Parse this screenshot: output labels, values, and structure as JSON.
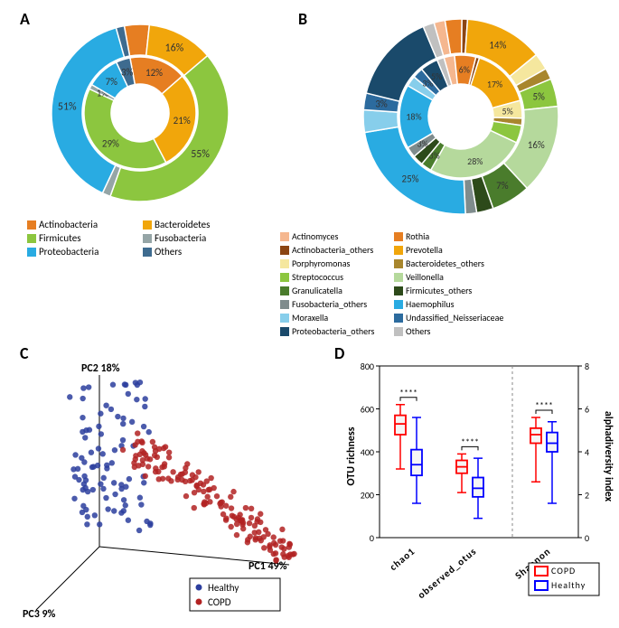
{
  "labels": {
    "A": "A",
    "B": "B",
    "C": "C",
    "D": "D"
  },
  "panelA": {
    "outer": [
      {
        "name": "Actinobacteria",
        "pct": null,
        "color": "#e67e22"
      },
      {
        "name": "Bacteroidetes",
        "pct": 16,
        "color": "#f1a60b"
      },
      {
        "name": "Firmicutes",
        "pct": 55,
        "color": "#8cc63f"
      },
      {
        "name": "Fusobacteria",
        "pct": null,
        "color": "#95a5a6"
      },
      {
        "name": "Proteobacteria",
        "pct": 51,
        "color": "#29abe2"
      },
      {
        "name": "Others",
        "pct": null,
        "color": "#3e6b8f"
      }
    ],
    "outer_values": [
      6,
      16,
      55,
      2,
      51,
      2
    ],
    "inner": [
      {
        "name": "Actinobacteria",
        "pct": 12,
        "color": "#e67e22"
      },
      {
        "name": "Bacteroidetes",
        "pct": 21,
        "color": "#f1a60b"
      },
      {
        "name": "Firmicutes",
        "pct": 29,
        "color": "#8cc63f"
      },
      {
        "name": "Fusobacteria",
        "pct": 1,
        "color": "#95a5a6"
      },
      {
        "name": "Proteobacteria",
        "pct": 7,
        "color": "#29abe2"
      },
      {
        "name": "Others",
        "pct": 3,
        "color": "#3e6b8f"
      }
    ],
    "inner_values": [
      12,
      21,
      29,
      1,
      7,
      3
    ],
    "shown_labels_outer": [
      "",
      "16%",
      "55%",
      "",
      "51%",
      ""
    ],
    "shown_labels_inner": [
      "12%",
      "21%",
      "29%",
      "1%",
      "7%",
      "3%"
    ],
    "legend": [
      {
        "label": "Actinobacteria",
        "color": "#e67e22"
      },
      {
        "label": "Bacteroidetes",
        "color": "#f1a60b"
      },
      {
        "label": "Firmicutes",
        "color": "#8cc63f"
      },
      {
        "label": "Fusobacteria",
        "color": "#95a5a6"
      },
      {
        "label": "Proteobacteria",
        "color": "#29abe2"
      },
      {
        "label": "Others",
        "color": "#3e6b8f"
      }
    ]
  },
  "panelB": {
    "outer": [
      {
        "name": "Actinomyces",
        "color": "#f5b78f"
      },
      {
        "name": "Rothia",
        "color": "#e67e22"
      },
      {
        "name": "Actinobacteria_others",
        "color": "#8b4513"
      },
      {
        "name": "Prevotella",
        "pct": 14,
        "color": "#f1a60b"
      },
      {
        "name": "Porphyromonas",
        "color": "#f5e79e"
      },
      {
        "name": "Bacteroidetes_others",
        "color": "#a8862d"
      },
      {
        "name": "Streptococcus",
        "pct": 5,
        "color": "#8cc63f"
      },
      {
        "name": "Veillonella",
        "pct": 16,
        "color": "#b5d99c"
      },
      {
        "name": "Granulicatella",
        "pct": 7,
        "color": "#4a7c2c"
      },
      {
        "name": "Firmicutes_others",
        "color": "#2d4a1a"
      },
      {
        "name": "Fusobacteria_others",
        "color": "#7f8c8d"
      },
      {
        "name": "Haemophilus",
        "pct": 25,
        "color": "#29abe2"
      },
      {
        "name": "Moraxella",
        "color": "#87ceeb"
      },
      {
        "name": "Undassified_Neisseriaceae",
        "pct": 3,
        "color": "#2c6b9e"
      },
      {
        "name": "Proteobacteria_others",
        "color": "#1a4a6b"
      },
      {
        "name": "Others",
        "color": "#c0c0c0"
      }
    ],
    "outer_values": [
      2,
      3,
      1,
      14,
      3,
      2,
      5,
      16,
      7,
      3,
      2,
      25,
      4,
      3,
      16,
      2
    ],
    "inner_values": [
      3,
      6,
      1,
      17,
      5,
      2,
      5,
      28,
      3,
      3,
      3,
      18,
      3,
      3,
      5,
      2
    ],
    "shown_labels_outer": [
      "",
      "",
      "",
      "14%",
      "",
      "",
      "5%",
      "16%",
      "7%",
      "",
      "",
      "25%",
      "",
      "3%",
      "",
      ""
    ],
    "shown_labels_inner": [
      "",
      "6%",
      "",
      "17%",
      "5%",
      "",
      "",
      "28%",
      "3%",
      "",
      "3%",
      "18%",
      "",
      "3%",
      "5%",
      ""
    ],
    "legend": [
      {
        "label": "Actinomyces",
        "color": "#f5b78f"
      },
      {
        "label": "Rothia",
        "color": "#e67e22"
      },
      {
        "label": "Actinobacteria_others",
        "color": "#8b4513"
      },
      {
        "label": "Prevotella",
        "color": "#f1a60b"
      },
      {
        "label": "Porphyromonas",
        "color": "#f5e79e"
      },
      {
        "label": "Bacteroidetes_others",
        "color": "#a8862d"
      },
      {
        "label": "Streptococcus",
        "color": "#8cc63f"
      },
      {
        "label": "Veillonella",
        "color": "#b5d99c"
      },
      {
        "label": "Granulicatella",
        "color": "#4a7c2c"
      },
      {
        "label": "Firmicutes_others",
        "color": "#2d4a1a"
      },
      {
        "label": "Fusobacteria_others",
        "color": "#7f8c8d"
      },
      {
        "label": "Haemophilus",
        "color": "#29abe2"
      },
      {
        "label": "Moraxella",
        "color": "#87ceeb"
      },
      {
        "label": "Undassified_Neisseriaceae",
        "color": "#2c6b9e"
      },
      {
        "label": "Proteobacteria_others",
        "color": "#1a4a6b"
      },
      {
        "label": "Others",
        "color": "#c0c0c0"
      }
    ]
  },
  "panelC": {
    "axes": {
      "pc1": "PC1 49%",
      "pc2": "PC2 18%",
      "pc3": "PC3 9%"
    },
    "legend": [
      {
        "label": "Healthy",
        "color": "#2c3e9e"
      },
      {
        "label": "COPD",
        "color": "#b22222"
      }
    ],
    "healthy_color": "#2c3e9e",
    "copd_color": "#b22222",
    "point_size": 3.2,
    "healthy_n": 90,
    "copd_n": 150
  },
  "panelD": {
    "ylabel_left": "OTU richness",
    "ylabel_right": "alphadiversity index",
    "ylim_left": [
      0,
      800
    ],
    "ytick_left": [
      0,
      200,
      400,
      600,
      800
    ],
    "ylim_right": [
      0,
      8
    ],
    "ytick_right": [
      0,
      2,
      4,
      6,
      8
    ],
    "categories": [
      "chao1",
      "observed_otus",
      "Shannon"
    ],
    "sig": "****",
    "copd_color": "#ff0000",
    "healthy_color": "#0000ff",
    "box_fill_copd": "#f5f5f5",
    "box_fill_healthy": "#f5f5f5",
    "bg": "#ffffff",
    "legend": [
      {
        "label": "COPD",
        "color": "#ff0000"
      },
      {
        "label": "Healthy",
        "color": "#0000ff"
      }
    ],
    "data": {
      "chao1": {
        "copd": {
          "q1": 480,
          "med": 530,
          "q3": 570,
          "lo": 320,
          "hi": 620
        },
        "healthy": {
          "q1": 290,
          "med": 340,
          "q3": 410,
          "lo": 160,
          "hi": 560
        }
      },
      "observed_otus": {
        "copd": {
          "q1": 300,
          "med": 330,
          "q3": 360,
          "lo": 210,
          "hi": 390
        },
        "healthy": {
          "q1": 190,
          "med": 230,
          "q3": 280,
          "lo": 90,
          "hi": 370
        }
      },
      "Shannon": {
        "copd": {
          "q1": 4.4,
          "med": 4.8,
          "q3": 5.1,
          "lo": 2.6,
          "hi": 5.6
        },
        "healthy": {
          "q1": 4.0,
          "med": 4.4,
          "q3": 4.9,
          "lo": 1.6,
          "hi": 5.4
        }
      }
    }
  }
}
